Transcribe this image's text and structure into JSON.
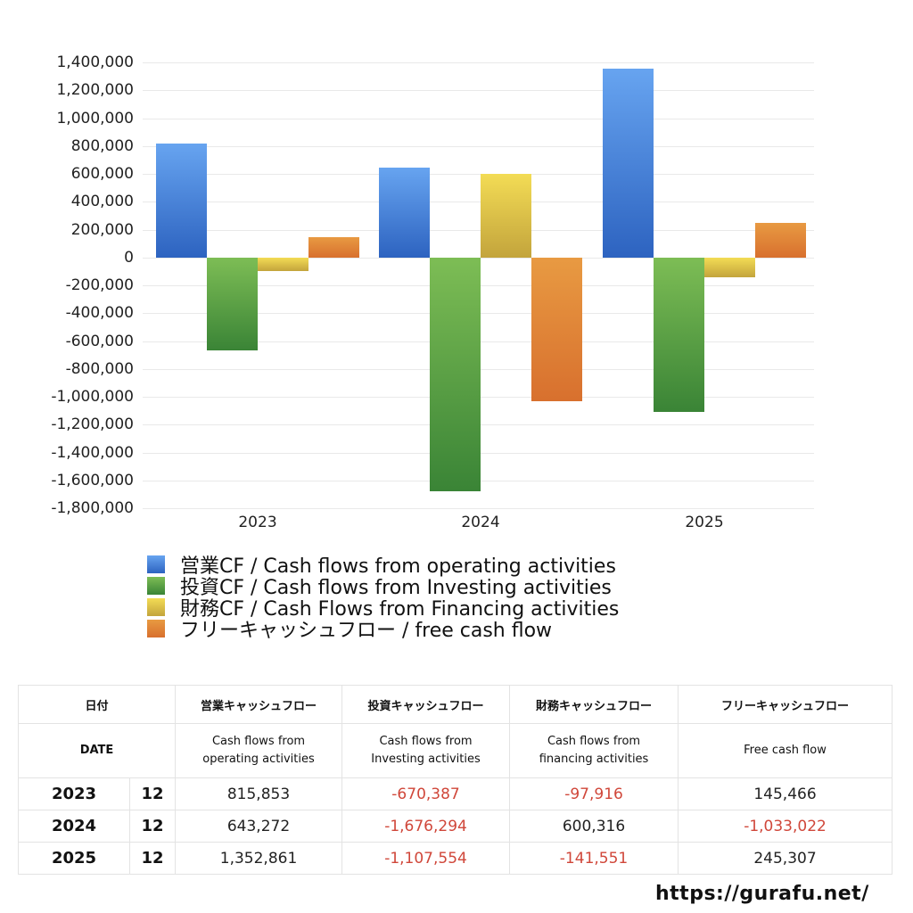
{
  "chart_data": {
    "type": "bar",
    "title": "",
    "xlabel": "",
    "ylabel": "",
    "categories": [
      "2023",
      "2024",
      "2025"
    ],
    "series": [
      {
        "name": "営業CF / Cash flows from operating activities",
        "color": "#3f7fd8",
        "values": [
          815853,
          643272,
          1352861
        ]
      },
      {
        "name": "投資CF / Cash flows from Investing activities",
        "color": "#4e9c3e",
        "values": [
          -670387,
          -1676294,
          -1107554
        ]
      },
      {
        "name": "財務CF / Cash Flows from Financing activities",
        "color": "#e0c448",
        "values": [
          -97916,
          600316,
          -141551
        ]
      },
      {
        "name": "フリーキャッシュフロー / free cash flow",
        "color": "#e07d33",
        "values": [
          145466,
          -1033022,
          245307
        ]
      }
    ],
    "ylim": [
      -1800000,
      1400000
    ],
    "yticks": [
      "1,400,000",
      "1,200,000",
      "1,000,000",
      "800,000",
      "600,000",
      "400,000",
      "200,000",
      "0",
      "-200,000",
      "-400,000",
      "-600,000",
      "-800,000",
      "-1,000,000",
      "-1,200,000",
      "-1,400,000",
      "-1,600,000",
      "-1,800,000"
    ],
    "grid": true,
    "legend_position": "bottom"
  },
  "legend": [
    {
      "label": "営業CF / Cash flows from operating activities"
    },
    {
      "label": "投資CF / Cash flows from Investing activities"
    },
    {
      "label": "財務CF / Cash Flows from Financing activities"
    },
    {
      "label": "フリーキャッシュフロー / free cash flow"
    }
  ],
  "table": {
    "header_jp": [
      "日付",
      "営業キャッシュフロー",
      "投資キャッシュフロー",
      "財務キャッシュフロー",
      "フリーキャッシュフロー"
    ],
    "header_en": [
      "DATE",
      "Cash flows from operating activities",
      "Cash flows from Investing activities",
      "Cash flows from financing activities",
      "Free cash flow"
    ],
    "rows": [
      {
        "year": "2023",
        "month": "12",
        "operating": "815,853",
        "investing": "-670,387",
        "financing": "-97,916",
        "free": "145,466"
      },
      {
        "year": "2024",
        "month": "12",
        "operating": "643,272",
        "investing": "-1,676,294",
        "financing": "600,316",
        "free": "-1,033,022"
      },
      {
        "year": "2025",
        "month": "12",
        "operating": "1,352,861",
        "investing": "-1,107,554",
        "financing": "-141,551",
        "free": "245,307"
      }
    ],
    "negative_color": "#d0473a"
  },
  "footer": {
    "url": "https://gurafu.net/"
  }
}
